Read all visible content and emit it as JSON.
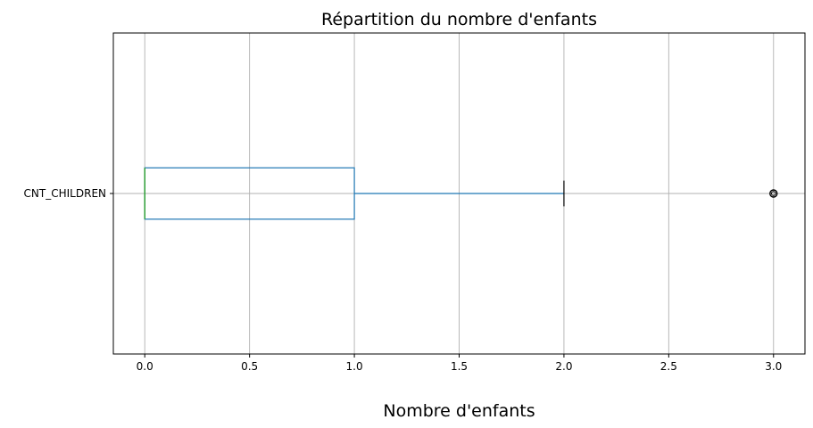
{
  "chart_data": {
    "type": "boxplot",
    "orientation": "horizontal",
    "title": "Répartition du nombre d'enfants",
    "xlabel": "Nombre d'enfants",
    "ylabel": "",
    "xlim": [
      -0.15,
      3.15
    ],
    "xticks": [
      0.0,
      0.5,
      1.0,
      1.5,
      2.0,
      2.5,
      3.0
    ],
    "xtick_labels": [
      "0.0",
      "0.5",
      "1.0",
      "1.5",
      "2.0",
      "2.5",
      "3.0"
    ],
    "categories": [
      "CNT_CHILDREN"
    ],
    "boxes": [
      {
        "label": "CNT_CHILDREN",
        "whisker_low": 0,
        "q1": 0,
        "median": 0,
        "q3": 1,
        "whisker_high": 2,
        "outliers": [
          3
        ]
      }
    ],
    "grid": true,
    "legend": "none",
    "colors": {
      "box": "#1f77b4",
      "median": "#2ca02c",
      "whisker": "#1f77b4",
      "cap": "#000000",
      "outlier": "#000000",
      "grid": "#b0b0b0"
    }
  }
}
